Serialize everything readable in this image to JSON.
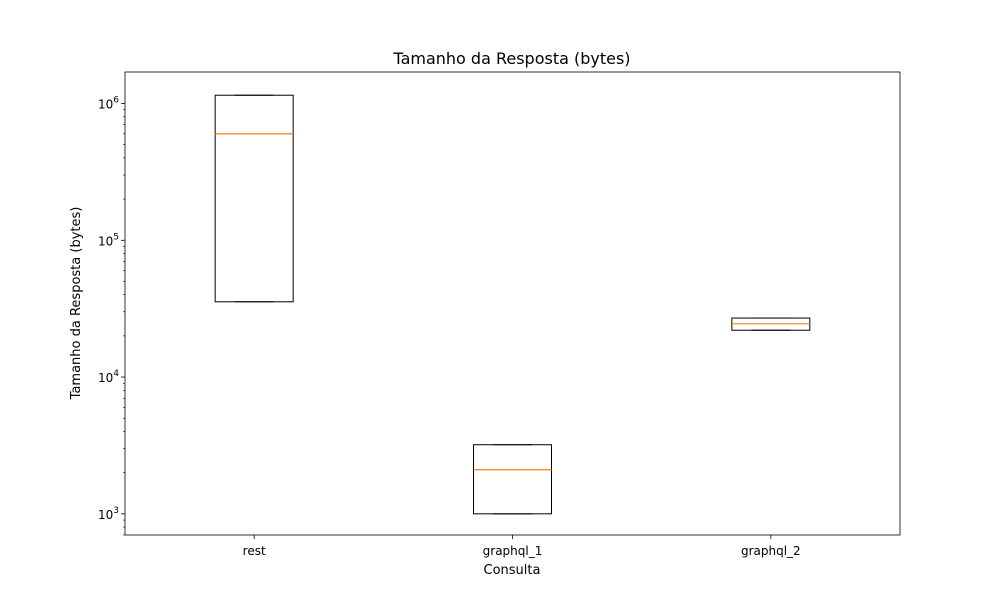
{
  "chart_data": {
    "type": "boxplot",
    "title": "Tamanho da Resposta (bytes)",
    "xlabel": "Consulta",
    "ylabel": "Tamanho da Resposta (bytes)",
    "y_scale": "log",
    "ylim": [
      700,
      1700000
    ],
    "y_ticks": [
      {
        "value": 1000,
        "base": "10",
        "exp": "3"
      },
      {
        "value": 10000,
        "base": "10",
        "exp": "4"
      },
      {
        "value": 100000,
        "base": "10",
        "exp": "5"
      },
      {
        "value": 1000000,
        "base": "10",
        "exp": "6"
      }
    ],
    "grid": false,
    "categories": [
      "rest",
      "graphql_1",
      "graphql_2"
    ],
    "boxes": [
      {
        "category": "rest",
        "min": 35500,
        "q1": 35500,
        "median": 600000,
        "q3": 1150000,
        "max": 1150000
      },
      {
        "category": "graphql_1",
        "min": 1000,
        "q1": 1000,
        "median": 2100,
        "q3": 3200,
        "max": 3200
      },
      {
        "category": "graphql_2",
        "min": 22000,
        "q1": 22000,
        "median": 24500,
        "q3": 27000,
        "max": 27000
      }
    ],
    "colors": {
      "box": "#000000",
      "median": "#ff7f0e"
    }
  }
}
